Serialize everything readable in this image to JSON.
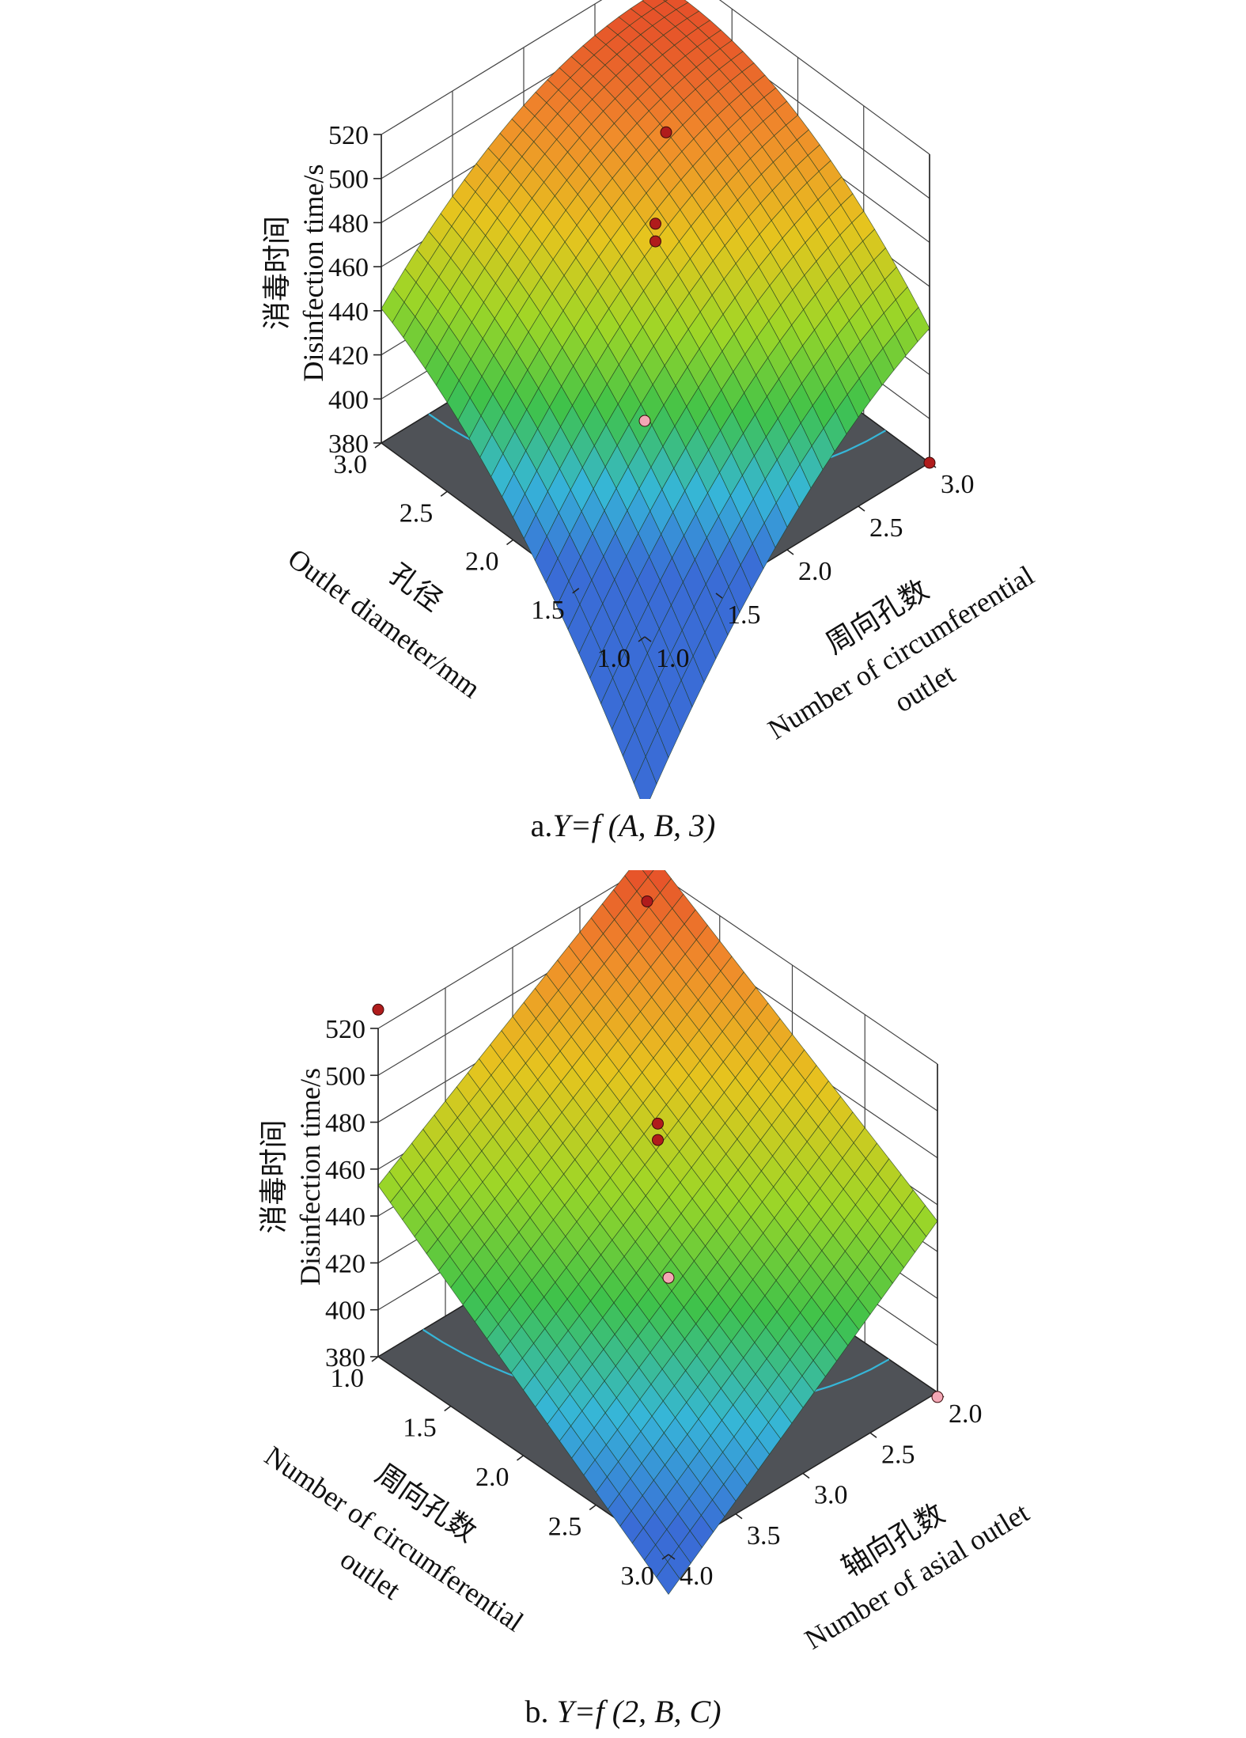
{
  "colors": {
    "floor": "#4f5257",
    "frame": "#222222",
    "grid": "#444444",
    "design_point": "#b01c1c",
    "design_point_light": "#f3a7b5",
    "contour_palette": [
      "#3a6cd6",
      "#36b6d8",
      "#3fc24a",
      "#9ed627",
      "#e6c41e",
      "#f08a2b",
      "#e23b2a"
    ]
  },
  "chart_data": [
    {
      "id": "a",
      "type": "surface",
      "caption": {
        "prefix": "a.",
        "func": "Y=f",
        "args": "(A, B, 3)"
      },
      "zlabel_cn": "消毒时间",
      "zlabel_en": "Disinfection time/s",
      "zticks": [
        520,
        500,
        480,
        460,
        440,
        420,
        400,
        380
      ],
      "zlim": [
        380,
        520
      ],
      "left_axis": {
        "label_cn": "孔径",
        "label_en": "Outlet diameter/mm",
        "ticks": [
          "3.0",
          "2.5",
          "2.0",
          "1.5",
          "1.0"
        ],
        "range": [
          1.0,
          3.0
        ]
      },
      "right_axis": {
        "label_cn": "周向孔数",
        "label_en": "Number of circumferential",
        "label_en2": "outlet",
        "ticks": [
          "3.0",
          "2.5",
          "2.0",
          "1.5",
          "1.0"
        ],
        "range": [
          1.0,
          3.0
        ]
      },
      "surface": {
        "min": 378,
        "max": 515,
        "model": "quadratic-ridge"
      },
      "design_points": [
        {
          "left": 3.0,
          "right": 3.0,
          "z": 442,
          "color": "dark"
        },
        {
          "left": 1.0,
          "right": 1.0,
          "z": 478,
          "color": "light"
        },
        {
          "left": 2.0,
          "right": 2.0,
          "z": 484,
          "color": "dark"
        },
        {
          "left": 2.0,
          "right": 2.0,
          "z": 476,
          "color": "dark"
        },
        {
          "left": 1.0,
          "right": 3.0,
          "z": 380,
          "color": "dark"
        }
      ]
    },
    {
      "id": "b",
      "type": "surface",
      "caption": {
        "prefix": "b. ",
        "func": "Y=f",
        "args": "(2, B, C)"
      },
      "zlabel_cn": "消毒时间",
      "zlabel_en": "Disinfection time/s",
      "zticks": [
        520,
        500,
        480,
        460,
        440,
        420,
        400,
        380
      ],
      "zlim": [
        380,
        520
      ],
      "left_axis": {
        "label_cn": "周向孔数",
        "label_en": "Number of circumferential",
        "label_en2": "outlet",
        "ticks": [
          "1.0",
          "1.5",
          "2.0",
          "2.5",
          "3.0"
        ],
        "range": [
          1.0,
          3.0
        ]
      },
      "right_axis": {
        "label_cn": "轴向孔数",
        "label_en": "Number of  asial outlet",
        "ticks": [
          "2.0",
          "2.5",
          "3.0",
          "3.5",
          "4.0"
        ],
        "range": [
          2.0,
          4.0
        ]
      },
      "surface": {
        "min": 378,
        "max": 530,
        "model": "saddle-plane"
      },
      "design_points": [
        {
          "left": 1.0,
          "right": 2.0,
          "z": 505,
          "color": "dark"
        },
        {
          "left": 1.0,
          "right": 4.0,
          "z": 528,
          "color": "dark"
        },
        {
          "left": 3.0,
          "right": 4.0,
          "z": 498,
          "color": "light"
        },
        {
          "left": 2.0,
          "right": 3.0,
          "z": 487,
          "color": "dark"
        },
        {
          "left": 2.0,
          "right": 3.0,
          "z": 480,
          "color": "dark"
        },
        {
          "left": 3.0,
          "right": 2.0,
          "z": 378,
          "color": "light"
        }
      ]
    }
  ]
}
